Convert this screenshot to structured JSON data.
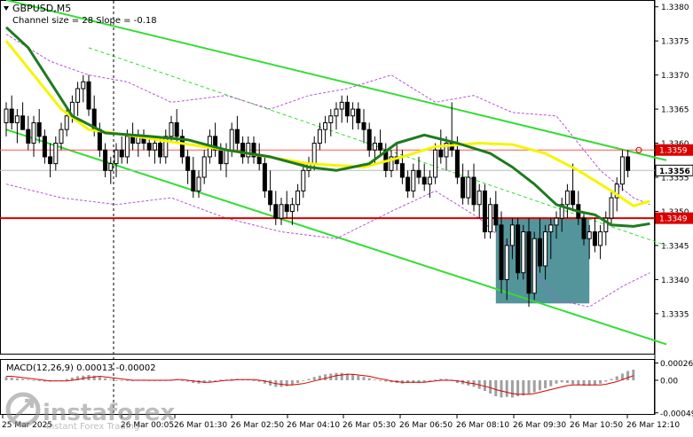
{
  "header": {
    "symbol_line": "GBPUSD,M5",
    "channel_line": "Channel size = 28 Slope = -0.18"
  },
  "macd": {
    "label": "MACD(12,26,9) 0.00013 -0.00002",
    "ticks": [
      "0.00026",
      "0.00",
      "-0.00049"
    ]
  },
  "watermark": {
    "brand": "instaforex",
    "tagline": "Instant Forex Trading"
  },
  "colors": {
    "background": "#ffffff",
    "candle": "#000000",
    "ma_fast": "#f5f500",
    "ma_slow": "#1e7a1e",
    "channel": "#33dd33",
    "envelope": "#b455d8",
    "support_line": "#d90000",
    "current_line": "#ff5555",
    "box": "#4a8f96",
    "macd_hist": "#a0a0a0",
    "macd_signal": "#d90000",
    "price_label_bg": "#d90000"
  },
  "chart_data": {
    "type": "candlestick",
    "symbol": "GBPUSD",
    "timeframe": "M5",
    "y_range": [
      1.3329,
      1.3381
    ],
    "y_ticks": [
      1.3335,
      1.334,
      1.3345,
      1.335,
      1.3355,
      1.336,
      1.3365,
      1.337,
      1.3375,
      1.338
    ],
    "y_tick_labels": [
      "1.3335",
      "1.3340",
      "1.3345",
      "1.3350",
      "1.3355",
      "1.3360",
      "1.3365",
      "1.3370",
      "1.3375",
      "1.3380"
    ],
    "x_labels": [
      "25 Mar 2025",
      "26 Mar 00:05",
      "26 Mar 01:30",
      "26 Mar 02:50",
      "26 Mar 04:10",
      "26 Mar 05:30",
      "26 Mar 06:50",
      "26 Mar 08:10",
      "26 Mar 09:30",
      "26 Mar 10:50",
      "26 Mar 12:10"
    ],
    "levels": [
      {
        "name": "support",
        "value": 1.3349,
        "label": "1.3349"
      },
      {
        "name": "resistance",
        "value": 1.3359,
        "label": "1.3359"
      },
      {
        "name": "current",
        "value": 1.3356,
        "label": "1.3356"
      }
    ],
    "channel": {
      "upper": [
        [
          0,
          1.3381
        ],
        [
          120,
          1.33575
        ]
      ],
      "lower": [
        [
          0,
          1.3362
        ],
        [
          120,
          1.33305
        ]
      ],
      "mid": [
        [
          15,
          1.3374
        ],
        [
          120,
          1.3345
        ]
      ]
    },
    "box": {
      "i0": 89,
      "i1": 106,
      "low": 1.33365,
      "high": 1.3349
    },
    "ma_fast": [
      [
        0,
        1.3375
      ],
      [
        5,
        1.337
      ],
      [
        10,
        1.3365
      ],
      [
        15,
        1.3362
      ],
      [
        22,
        1.33612
      ],
      [
        30,
        1.33602
      ],
      [
        40,
        1.3359
      ],
      [
        55,
        1.3357
      ],
      [
        65,
        1.33565
      ],
      [
        72,
        1.3358
      ],
      [
        78,
        1.33595
      ],
      [
        86,
        1.336
      ],
      [
        92,
        1.33598
      ],
      [
        98,
        1.33585
      ],
      [
        104,
        1.3356
      ],
      [
        110,
        1.3353
      ],
      [
        114,
        1.33508
      ],
      [
        117,
        1.33515
      ]
    ],
    "ma_slow": [
      [
        0,
        1.3377
      ],
      [
        4,
        1.3374
      ],
      [
        8,
        1.3369
      ],
      [
        12,
        1.3364
      ],
      [
        18,
        1.33615
      ],
      [
        26,
        1.3361
      ],
      [
        33,
        1.33605
      ],
      [
        40,
        1.3359
      ],
      [
        48,
        1.3358
      ],
      [
        55,
        1.33565
      ],
      [
        60,
        1.3356
      ],
      [
        66,
        1.3357
      ],
      [
        71,
        1.336
      ],
      [
        76,
        1.33612
      ],
      [
        82,
        1.336
      ],
      [
        88,
        1.33585
      ],
      [
        92,
        1.33565
      ],
      [
        96,
        1.3354
      ],
      [
        100,
        1.3351
      ],
      [
        104,
        1.335
      ],
      [
        107,
        1.33495
      ],
      [
        110,
        1.3348
      ],
      [
        114,
        1.33478
      ],
      [
        117,
        1.33482
      ]
    ],
    "envelope_upper": [
      [
        0,
        1.3376
      ],
      [
        8,
        1.3372
      ],
      [
        15,
        1.337
      ],
      [
        22,
        1.3369
      ],
      [
        30,
        1.3366
      ],
      [
        40,
        1.3367
      ],
      [
        48,
        1.3365
      ],
      [
        55,
        1.3367
      ],
      [
        62,
        1.3368
      ],
      [
        70,
        1.337
      ],
      [
        78,
        1.3366
      ],
      [
        85,
        1.3367
      ],
      [
        92,
        1.33645
      ],
      [
        100,
        1.3364
      ],
      [
        108,
        1.3356
      ],
      [
        114,
        1.3352
      ],
      [
        117,
        1.3351
      ]
    ],
    "envelope_lower": [
      [
        0,
        1.3354
      ],
      [
        10,
        1.3352
      ],
      [
        20,
        1.3351
      ],
      [
        30,
        1.3352
      ],
      [
        40,
        1.3349
      ],
      [
        50,
        1.3347
      ],
      [
        60,
        1.3346
      ],
      [
        70,
        1.335
      ],
      [
        78,
        1.3353
      ],
      [
        86,
        1.3349
      ],
      [
        94,
        1.3343
      ],
      [
        100,
        1.3337
      ],
      [
        106,
        1.3336
      ],
      [
        112,
        1.3339
      ],
      [
        117,
        1.3341
      ]
    ],
    "candles": [
      [
        1.3363,
        1.3366,
        1.3361,
        1.3365
      ],
      [
        1.3365,
        1.3367,
        1.3362,
        1.3363
      ],
      [
        1.3363,
        1.3365,
        1.336,
        1.3364
      ],
      [
        1.3364,
        1.3366,
        1.3362,
        1.3362
      ],
      [
        1.3362,
        1.3364,
        1.3359,
        1.336
      ],
      [
        1.336,
        1.3364,
        1.3358,
        1.3363
      ],
      [
        1.3363,
        1.3365,
        1.336,
        1.3361
      ],
      [
        1.3361,
        1.3362,
        1.3357,
        1.3358
      ],
      [
        1.3358,
        1.336,
        1.3355,
        1.3357
      ],
      [
        1.3357,
        1.3361,
        1.3356,
        1.336
      ],
      [
        1.336,
        1.3363,
        1.3359,
        1.3362
      ],
      [
        1.3362,
        1.3365,
        1.3361,
        1.3364
      ],
      [
        1.3364,
        1.3367,
        1.3363,
        1.3366
      ],
      [
        1.3366,
        1.3369,
        1.3364,
        1.3368
      ],
      [
        1.3368,
        1.337,
        1.3366,
        1.3369
      ],
      [
        1.3369,
        1.337,
        1.3364,
        1.3365
      ],
      [
        1.3365,
        1.3367,
        1.3361,
        1.3362
      ],
      [
        1.3362,
        1.3363,
        1.3358,
        1.3359
      ],
      [
        1.3359,
        1.336,
        1.3355,
        1.3356
      ],
      [
        1.3356,
        1.3358,
        1.3354,
        1.3357
      ],
      [
        1.3357,
        1.336,
        1.3355,
        1.3359
      ],
      [
        1.3359,
        1.3361,
        1.3357,
        1.3358
      ],
      [
        1.3358,
        1.3362,
        1.3357,
        1.3361
      ],
      [
        1.3361,
        1.3363,
        1.3359,
        1.336
      ],
      [
        1.336,
        1.3362,
        1.3358,
        1.3361
      ],
      [
        1.3361,
        1.3362,
        1.3359,
        1.336
      ],
      [
        1.336,
        1.3361,
        1.3358,
        1.3359
      ],
      [
        1.3359,
        1.3361,
        1.3357,
        1.336
      ],
      [
        1.336,
        1.3361,
        1.3357,
        1.3358
      ],
      [
        1.3358,
        1.3362,
        1.3357,
        1.3361
      ],
      [
        1.3361,
        1.3364,
        1.336,
        1.3363
      ],
      [
        1.3363,
        1.3365,
        1.336,
        1.3361
      ],
      [
        1.3361,
        1.3362,
        1.3357,
        1.3358
      ],
      [
        1.3358,
        1.3359,
        1.3354,
        1.3356
      ],
      [
        1.3356,
        1.3358,
        1.3352,
        1.3353
      ],
      [
        1.3353,
        1.3356,
        1.3352,
        1.3355
      ],
      [
        1.3355,
        1.3359,
        1.3354,
        1.3358
      ],
      [
        1.3358,
        1.3362,
        1.3357,
        1.3361
      ],
      [
        1.3361,
        1.3363,
        1.3358,
        1.3359
      ],
      [
        1.3359,
        1.336,
        1.3356,
        1.3357
      ],
      [
        1.3357,
        1.336,
        1.3355,
        1.3359
      ],
      [
        1.3359,
        1.3363,
        1.3358,
        1.3362
      ],
      [
        1.3362,
        1.3364,
        1.3359,
        1.336
      ],
      [
        1.336,
        1.3361,
        1.3357,
        1.3358
      ],
      [
        1.3358,
        1.3361,
        1.3357,
        1.336
      ],
      [
        1.336,
        1.3361,
        1.3357,
        1.3358
      ],
      [
        1.3358,
        1.336,
        1.3356,
        1.3357
      ],
      [
        1.3357,
        1.3358,
        1.3352,
        1.3353
      ],
      [
        1.3353,
        1.3356,
        1.335,
        1.3351
      ],
      [
        1.3351,
        1.3353,
        1.3348,
        1.3349
      ],
      [
        1.3349,
        1.3352,
        1.3348,
        1.3351
      ],
      [
        1.3351,
        1.3353,
        1.3349,
        1.335
      ],
      [
        1.335,
        1.3352,
        1.3348,
        1.3351
      ],
      [
        1.3351,
        1.3354,
        1.335,
        1.3353
      ],
      [
        1.3353,
        1.3357,
        1.3352,
        1.3356
      ],
      [
        1.3356,
        1.3358,
        1.3355,
        1.3357
      ],
      [
        1.3357,
        1.3361,
        1.3356,
        1.336
      ],
      [
        1.336,
        1.3363,
        1.3359,
        1.3362
      ],
      [
        1.3362,
        1.3364,
        1.336,
        1.3363
      ],
      [
        1.3363,
        1.3365,
        1.3361,
        1.3364
      ],
      [
        1.3364,
        1.3366,
        1.3362,
        1.3365
      ],
      [
        1.3365,
        1.3367,
        1.3363,
        1.3366
      ],
      [
        1.3366,
        1.3367,
        1.3363,
        1.3364
      ],
      [
        1.3364,
        1.3366,
        1.3362,
        1.3365
      ],
      [
        1.3365,
        1.3366,
        1.3362,
        1.3363
      ],
      [
        1.3363,
        1.3365,
        1.336,
        1.3362
      ],
      [
        1.3362,
        1.3363,
        1.3358,
        1.3359
      ],
      [
        1.3359,
        1.3361,
        1.3357,
        1.336
      ],
      [
        1.336,
        1.3362,
        1.3358,
        1.3359
      ],
      [
        1.3359,
        1.336,
        1.3355,
        1.3356
      ],
      [
        1.3356,
        1.3359,
        1.3355,
        1.3358
      ],
      [
        1.3358,
        1.336,
        1.3356,
        1.3357
      ],
      [
        1.3357,
        1.3359,
        1.3354,
        1.3355
      ],
      [
        1.3355,
        1.3356,
        1.3352,
        1.3353
      ],
      [
        1.3353,
        1.3357,
        1.3352,
        1.3356
      ],
      [
        1.3356,
        1.3358,
        1.3354,
        1.3355
      ],
      [
        1.3355,
        1.3357,
        1.3353,
        1.3354
      ],
      [
        1.3354,
        1.3356,
        1.3352,
        1.3355
      ],
      [
        1.3355,
        1.336,
        1.3354,
        1.3359
      ],
      [
        1.3359,
        1.3362,
        1.3357,
        1.3358
      ],
      [
        1.3358,
        1.3361,
        1.3356,
        1.336
      ],
      [
        1.336,
        1.3366,
        1.3358,
        1.3359
      ],
      [
        1.3359,
        1.3361,
        1.3354,
        1.3355
      ],
      [
        1.3355,
        1.3357,
        1.3351,
        1.3352
      ],
      [
        1.3352,
        1.3356,
        1.3351,
        1.3355
      ],
      [
        1.3355,
        1.3357,
        1.335,
        1.3351
      ],
      [
        1.3351,
        1.3354,
        1.3349,
        1.3353
      ],
      [
        1.3353,
        1.3354,
        1.3346,
        1.3347
      ],
      [
        1.3347,
        1.3352,
        1.3346,
        1.3351
      ],
      [
        1.3351,
        1.3353,
        1.3347,
        1.3348
      ],
      [
        1.3348,
        1.335,
        1.3338,
        1.334
      ],
      [
        1.334,
        1.3346,
        1.3337,
        1.3345
      ],
      [
        1.3345,
        1.3349,
        1.3343,
        1.3348
      ],
      [
        1.3348,
        1.3349,
        1.334,
        1.3341
      ],
      [
        1.3341,
        1.3348,
        1.334,
        1.3347
      ],
      [
        1.3347,
        1.3349,
        1.3336,
        1.3338
      ],
      [
        1.3338,
        1.3347,
        1.3337,
        1.3346
      ],
      [
        1.3346,
        1.3349,
        1.3341,
        1.3342
      ],
      [
        1.3342,
        1.3348,
        1.334,
        1.3347
      ],
      [
        1.3347,
        1.3349,
        1.3343,
        1.3348
      ],
      [
        1.3348,
        1.335,
        1.3346,
        1.3349
      ],
      [
        1.3349,
        1.3352,
        1.3347,
        1.3351
      ],
      [
        1.3351,
        1.3354,
        1.3349,
        1.3353
      ],
      [
        1.3353,
        1.3357,
        1.335,
        1.3351
      ],
      [
        1.3351,
        1.3353,
        1.3348,
        1.3349
      ],
      [
        1.3349,
        1.335,
        1.3345,
        1.3346
      ],
      [
        1.3346,
        1.3348,
        1.3343,
        1.3347
      ],
      [
        1.3347,
        1.3349,
        1.3344,
        1.3345
      ],
      [
        1.3345,
        1.3348,
        1.3343,
        1.3347
      ],
      [
        1.3347,
        1.335,
        1.3345,
        1.3349
      ],
      [
        1.3349,
        1.3353,
        1.3348,
        1.3352
      ],
      [
        1.3352,
        1.3355,
        1.335,
        1.3354
      ],
      [
        1.3354,
        1.3359,
        1.3353,
        1.3358
      ],
      [
        1.3358,
        1.3359,
        1.3355,
        1.3356
      ]
    ],
    "macd_hist": [
      0.5,
      0.4,
      0.3,
      0.2,
      0.1,
      0.0,
      -0.1,
      -0.2,
      -0.2,
      -0.1,
      0.0,
      0.2,
      0.4,
      0.6,
      0.7,
      0.8,
      0.7,
      0.5,
      0.3,
      0.1,
      0.0,
      -0.1,
      -0.1,
      0.0,
      0.1,
      0.1,
      0.0,
      0.0,
      -0.1,
      0.0,
      0.1,
      0.1,
      0.0,
      -0.2,
      -0.4,
      -0.5,
      -0.4,
      -0.2,
      0.0,
      0.1,
      0.1,
      0.2,
      0.2,
      0.1,
      0.1,
      0.0,
      -0.2,
      -0.5,
      -0.8,
      -1.0,
      -1.0,
      -0.9,
      -0.7,
      -0.4,
      -0.1,
      0.2,
      0.5,
      0.7,
      0.9,
      1.0,
      1.1,
      1.1,
      1.0,
      0.9,
      0.7,
      0.5,
      0.3,
      0.1,
      -0.1,
      -0.2,
      -0.3,
      -0.4,
      -0.5,
      -0.4,
      -0.4,
      -0.4,
      -0.3,
      -0.1,
      0.1,
      0.2,
      0.2,
      -0.1,
      -0.4,
      -0.6,
      -0.8,
      -1.0,
      -1.3,
      -1.6,
      -2.0,
      -2.4,
      -2.6,
      -2.5,
      -2.6,
      -2.4,
      -2.3,
      -2.0,
      -1.8,
      -1.5,
      -1.2,
      -0.9,
      -0.5,
      -0.3,
      -0.4,
      -0.6,
      -0.7,
      -0.8,
      -0.8,
      -0.7,
      -0.5,
      -0.2,
      0.2,
      0.6,
      1.0,
      1.4,
      1.6
    ],
    "macd_signal": [
      0.6,
      0.6,
      0.5,
      0.4,
      0.3,
      0.2,
      0.1,
      0.0,
      -0.1,
      -0.1,
      -0.1,
      -0.1,
      0.0,
      0.1,
      0.3,
      0.4,
      0.5,
      0.6,
      0.5,
      0.4,
      0.3,
      0.2,
      0.1,
      0.0,
      0.0,
      0.0,
      0.0,
      0.0,
      0.0,
      0.0,
      0.0,
      0.1,
      0.1,
      0.0,
      -0.1,
      -0.2,
      -0.3,
      -0.3,
      -0.2,
      -0.1,
      0.0,
      0.0,
      0.1,
      0.1,
      0.1,
      0.1,
      0.0,
      -0.1,
      -0.3,
      -0.5,
      -0.6,
      -0.7,
      -0.7,
      -0.6,
      -0.5,
      -0.3,
      -0.1,
      0.1,
      0.3,
      0.5,
      0.7,
      0.8,
      0.9,
      0.9,
      0.8,
      0.7,
      0.6,
      0.4,
      0.2,
      0.1,
      -0.1,
      -0.2,
      -0.3,
      -0.3,
      -0.3,
      -0.3,
      -0.3,
      -0.2,
      -0.1,
      0.0,
      0.0,
      0.0,
      -0.1,
      -0.2,
      -0.4,
      -0.5,
      -0.7,
      -0.9,
      -1.1,
      -1.4,
      -1.6,
      -1.8,
      -2.0,
      -2.1,
      -2.1,
      -2.1,
      -2.0,
      -1.8,
      -1.6,
      -1.4,
      -1.2,
      -1.0,
      -0.8,
      -0.7,
      -0.7,
      -0.7,
      -0.7,
      -0.7,
      -0.7,
      -0.6,
      -0.4,
      -0.2,
      0.1,
      0.4,
      0.7
    ]
  }
}
